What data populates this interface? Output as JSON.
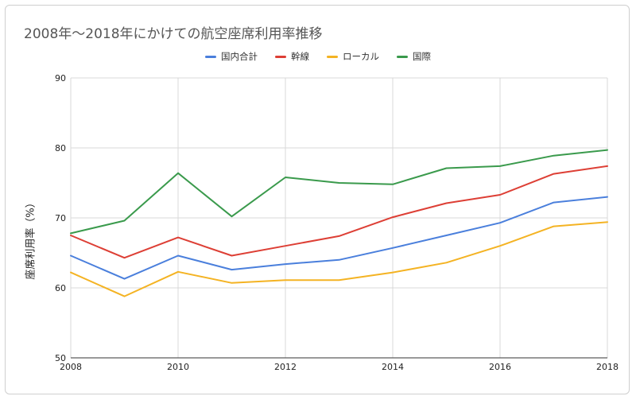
{
  "chart_data": {
    "type": "line",
    "title": "2008年〜2018年にかけての航空座席利用率推移",
    "xlabel": "",
    "ylabel": "座席利用率（%）",
    "x": [
      2008,
      2009,
      2010,
      2011,
      2012,
      2013,
      2014,
      2015,
      2016,
      2017,
      2018
    ],
    "xticks": [
      "2008",
      "2010",
      "2012",
      "2014",
      "2016",
      "2018"
    ],
    "xlim": [
      2008,
      2018
    ],
    "ylim": [
      50,
      90
    ],
    "yticks": [
      "50",
      "60",
      "70",
      "80",
      "90"
    ],
    "grid": true,
    "legend_position": "top",
    "series": [
      {
        "name": "国内合計",
        "color": "#4a7fdc",
        "values": [
          64.6,
          61.3,
          64.6,
          62.6,
          63.4,
          64.0,
          65.7,
          67.5,
          69.3,
          72.2,
          73.0
        ]
      },
      {
        "name": "幹線",
        "color": "#dd3f35",
        "values": [
          67.5,
          64.3,
          67.2,
          64.6,
          66.0,
          67.4,
          70.1,
          72.1,
          73.3,
          76.3,
          77.4
        ]
      },
      {
        "name": "ローカル",
        "color": "#f4b323",
        "values": [
          62.2,
          58.8,
          62.3,
          60.7,
          61.1,
          61.1,
          62.2,
          63.6,
          66.0,
          68.8,
          69.4
        ]
      },
      {
        "name": "国際",
        "color": "#3a9a4c",
        "values": [
          67.8,
          69.6,
          76.4,
          70.2,
          75.8,
          75.0,
          74.8,
          77.1,
          77.4,
          78.9,
          79.7
        ]
      }
    ]
  }
}
